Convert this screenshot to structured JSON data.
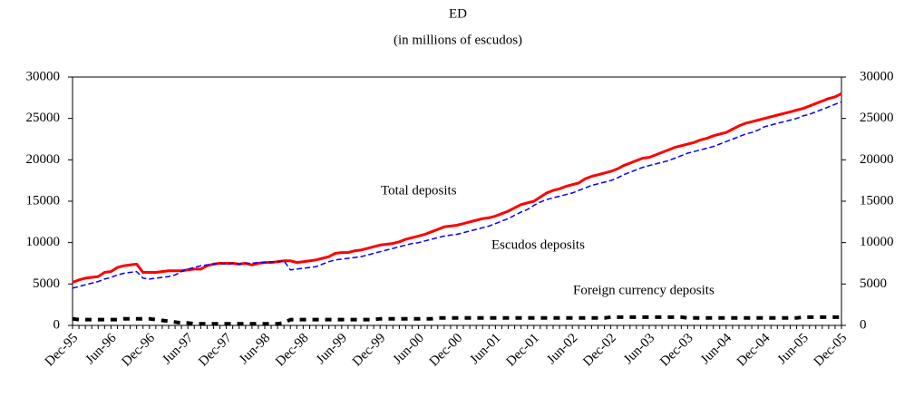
{
  "chart_data": {
    "type": "line",
    "title": "ED",
    "subtitle": "(in millions of escudos)",
    "categories": [
      "Dec-95",
      null,
      null,
      null,
      null,
      null,
      "Jun-96",
      null,
      null,
      null,
      null,
      null,
      "Dec-96",
      null,
      null,
      null,
      null,
      null,
      "Jun-97",
      null,
      null,
      null,
      null,
      null,
      "Dec-97",
      null,
      null,
      null,
      null,
      null,
      "Jun-98",
      null,
      null,
      null,
      null,
      null,
      "Dec-98",
      null,
      null,
      null,
      null,
      null,
      "Jun-99",
      null,
      null,
      null,
      null,
      null,
      "Dec-99",
      null,
      null,
      null,
      null,
      null,
      "Jun-00",
      null,
      null,
      null,
      null,
      null,
      "Dec-00",
      null,
      null,
      null,
      null,
      null,
      "Jun-01",
      null,
      null,
      null,
      null,
      null,
      "Dec-01",
      null,
      null,
      null,
      null,
      null,
      "Jun-02",
      null,
      null,
      null,
      null,
      null,
      "Dec-02",
      null,
      null,
      null,
      null,
      null,
      "Jun-03",
      null,
      null,
      null,
      null,
      null,
      "Dec-03",
      null,
      null,
      null,
      null,
      null,
      "Jun-04",
      null,
      null,
      null,
      null,
      null,
      "Dec-04",
      null,
      null,
      null,
      null,
      null,
      "Jun-05",
      null,
      null,
      null,
      null,
      null,
      "Dec-05"
    ],
    "series": [
      {
        "name": "Total deposits",
        "color": "#ff0000",
        "values": [
          5200,
          5500,
          5700,
          5800,
          5900,
          6400,
          6500,
          7000,
          7200,
          7300,
          7400,
          6400,
          6400,
          6400,
          6500,
          6600,
          6600,
          6600,
          6700,
          6800,
          6800,
          7200,
          7400,
          7500,
          7500,
          7500,
          7400,
          7500,
          7300,
          7500,
          7600,
          7600,
          7700,
          7800,
          7800,
          7600,
          7700,
          7800,
          7900,
          8100,
          8300,
          8700,
          8800,
          8800,
          9000,
          9100,
          9300,
          9500,
          9700,
          9800,
          9900,
          10100,
          10400,
          10600,
          10800,
          11000,
          11300,
          11600,
          11900,
          12000,
          12100,
          12300,
          12500,
          12700,
          12900,
          13000,
          13200,
          13500,
          13800,
          14200,
          14600,
          14800,
          15000,
          15500,
          16000,
          16300,
          16500,
          16800,
          17000,
          17200,
          17700,
          18000,
          18200,
          18400,
          18600,
          18900,
          19300,
          19600,
          19900,
          20200,
          20300,
          20600,
          20900,
          21200,
          21500,
          21700,
          21900,
          22100,
          22400,
          22600,
          22900,
          23100,
          23300,
          23700,
          24100,
          24400,
          24600,
          24800,
          25000,
          25200,
          25400,
          25600,
          25800,
          26000,
          26200,
          26500,
          26800,
          27100,
          27400,
          27600,
          28000
        ]
      },
      {
        "name": "Escudos deposits",
        "color": "#0000ff",
        "values": [
          4500,
          4700,
          4900,
          5100,
          5300,
          5600,
          5800,
          6100,
          6300,
          6400,
          6500,
          5700,
          5600,
          5700,
          5800,
          5900,
          6100,
          6500,
          6800,
          7000,
          7200,
          7300,
          7400,
          7500,
          7400,
          7500,
          7400,
          7500,
          7500,
          7600,
          7600,
          7700,
          7700,
          7800,
          6700,
          6800,
          6900,
          7000,
          7100,
          7400,
          7700,
          7900,
          8000,
          8100,
          8200,
          8300,
          8500,
          8700,
          8900,
          9100,
          9300,
          9500,
          9700,
          9900,
          10000,
          10200,
          10400,
          10600,
          10800,
          10900,
          11000,
          11200,
          11400,
          11600,
          11800,
          12000,
          12300,
          12600,
          12900,
          13300,
          13700,
          14000,
          14500,
          14900,
          15200,
          15400,
          15600,
          15800,
          16000,
          16300,
          16600,
          16900,
          17100,
          17300,
          17500,
          17800,
          18200,
          18500,
          18800,
          19100,
          19300,
          19500,
          19700,
          19900,
          20200,
          20500,
          20800,
          21000,
          21200,
          21400,
          21600,
          21900,
          22200,
          22500,
          22800,
          23100,
          23300,
          23600,
          24000,
          24200,
          24400,
          24600,
          24800,
          25000,
          25300,
          25500,
          25800,
          26100,
          26400,
          26700,
          27000
        ]
      },
      {
        "name": "Foreign currency deposits",
        "color": "#000000",
        "values": [
          800,
          700,
          700,
          700,
          700,
          700,
          700,
          700,
          800,
          800,
          800,
          800,
          800,
          700,
          600,
          500,
          400,
          300,
          300,
          200,
          200,
          200,
          200,
          200,
          200,
          200,
          200,
          200,
          200,
          200,
          200,
          200,
          200,
          300,
          700,
          700,
          700,
          700,
          700,
          700,
          700,
          700,
          700,
          700,
          700,
          700,
          700,
          700,
          800,
          800,
          800,
          800,
          800,
          800,
          800,
          800,
          800,
          900,
          900,
          900,
          900,
          900,
          900,
          900,
          900,
          900,
          900,
          900,
          900,
          900,
          900,
          900,
          900,
          900,
          900,
          900,
          900,
          900,
          900,
          900,
          900,
          900,
          900,
          900,
          1000,
          1000,
          1000,
          1000,
          1000,
          1000,
          1000,
          1000,
          1000,
          1000,
          1000,
          1000,
          900,
          900,
          900,
          900,
          900,
          900,
          900,
          900,
          900,
          900,
          900,
          900,
          900,
          900,
          900,
          900,
          900,
          900,
          1000,
          1000,
          1000,
          1000,
          1000,
          1000,
          1000
        ]
      }
    ],
    "annotations": [
      "Total deposits",
      "Escudos deposits",
      "Foreign currency deposits"
    ],
    "ylim": [
      0,
      30000
    ],
    "yticks": [
      0,
      5000,
      10000,
      15000,
      20000,
      25000,
      30000
    ],
    "y2lim": [
      0,
      30000
    ],
    "y2ticks": [
      0,
      5000,
      10000,
      15000,
      20000,
      25000,
      30000
    ]
  }
}
